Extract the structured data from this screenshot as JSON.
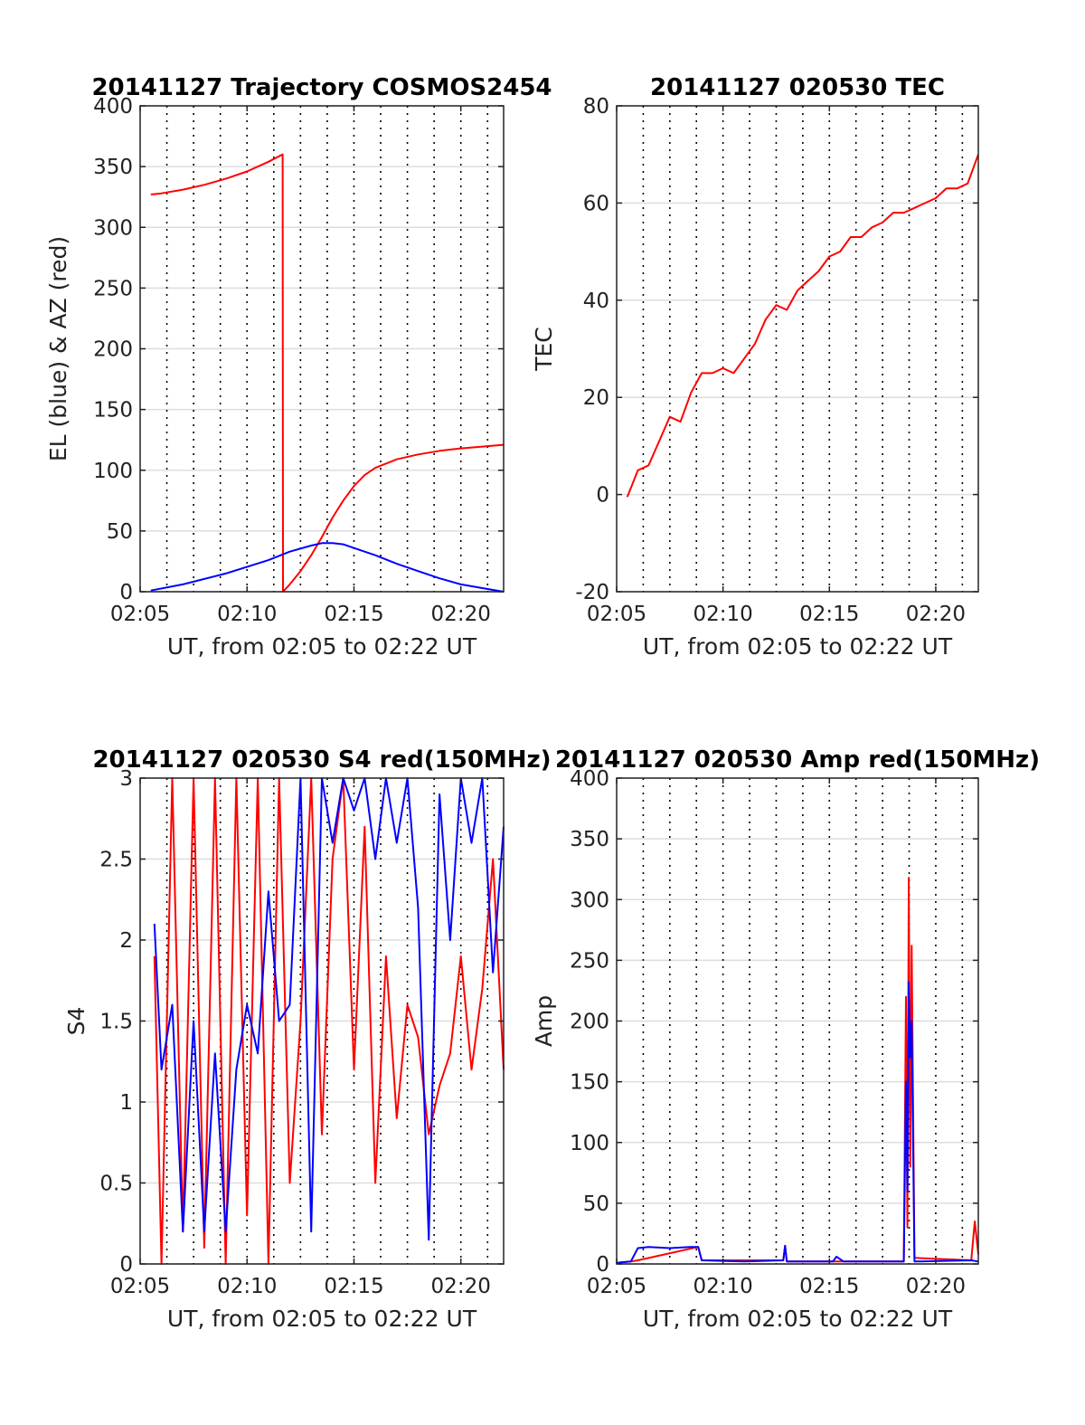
{
  "chart_data": [
    {
      "id": "p1",
      "type": "line",
      "title": "20141127 Trajectory COSMOS2454",
      "xlabel": "UT, from 02:05 to 02:22 UT",
      "ylabel": "EL (blue) & AZ (red)",
      "xlim": [
        "02:05",
        "02:22"
      ],
      "xticks": [
        "02:05",
        "02:10",
        "02:15",
        "02:20"
      ],
      "ylim": [
        0,
        400
      ],
      "yticks": [
        0,
        50,
        100,
        150,
        200,
        250,
        300,
        350,
        400
      ],
      "grid": "on",
      "colors": {
        "az": "#ff0000",
        "el": "#0000ff"
      },
      "series": [
        {
          "color": "red",
          "x": [
            "02:05:30",
            "02:06:00",
            "02:07:00",
            "02:08:00",
            "02:09:00",
            "02:10:00",
            "02:11:00",
            "02:11:40",
            "02:11:41",
            "02:12:00",
            "02:12:30",
            "02:13:00",
            "02:13:30",
            "02:14:00",
            "02:14:30",
            "02:15:00",
            "02:15:30",
            "02:16:00",
            "02:17:00",
            "02:18:00",
            "02:19:00",
            "02:20:00",
            "02:21:00",
            "02:22:00"
          ],
          "values": [
            327,
            328,
            331,
            335,
            340,
            346,
            354,
            360,
            0,
            6,
            17,
            30,
            45,
            61,
            75,
            87,
            96,
            102,
            109,
            113,
            116,
            118,
            119.5,
            121
          ]
        },
        {
          "color": "blue",
          "x": [
            "02:05:30",
            "02:07:00",
            "02:09:00",
            "02:11:00",
            "02:12:00",
            "02:13:00",
            "02:13:30",
            "02:14:00",
            "02:14:30",
            "02:15:00",
            "02:16:00",
            "02:17:00",
            "02:18:00",
            "02:19:00",
            "02:20:00",
            "02:21:00",
            "02:22:00"
          ],
          "values": [
            1,
            6,
            15,
            26,
            33,
            38,
            40,
            40,
            39,
            36,
            30,
            23,
            17,
            11,
            6,
            3,
            0
          ]
        }
      ]
    },
    {
      "id": "p2",
      "type": "line",
      "title": "20141127 020530 TEC",
      "xlabel": "UT, from 02:05 to 02:22 UT",
      "ylabel": "TEC",
      "xlim": [
        "02:05",
        "02:22"
      ],
      "xticks": [
        "02:05",
        "02:10",
        "02:15",
        "02:20"
      ],
      "ylim": [
        -20,
        80
      ],
      "yticks": [
        -20,
        0,
        20,
        40,
        60,
        80
      ],
      "grid": "on",
      "colors": {
        "tec": "#ff0000"
      },
      "series": [
        {
          "color": "red",
          "x": [
            "02:05:30",
            "02:06:00",
            "02:06:30",
            "02:07:00",
            "02:07:30",
            "02:08:00",
            "02:08:30",
            "02:09:00",
            "02:09:30",
            "02:10:00",
            "02:10:30",
            "02:11:00",
            "02:11:30",
            "02:12:00",
            "02:12:30",
            "02:13:00",
            "02:13:30",
            "02:14:00",
            "02:14:30",
            "02:15:00",
            "02:15:30",
            "02:16:00",
            "02:16:30",
            "02:17:00",
            "02:17:30",
            "02:18:00",
            "02:18:30",
            "02:19:00",
            "02:19:30",
            "02:20:00",
            "02:20:30",
            "02:21:00",
            "02:21:30",
            "02:22:00"
          ],
          "values": [
            -0.5,
            5,
            6,
            11,
            16,
            15,
            21,
            25,
            25,
            26,
            25,
            28,
            31,
            36,
            39,
            38,
            42,
            44,
            46,
            49,
            50,
            53,
            53,
            55,
            56,
            58,
            58,
            59,
            60,
            61,
            63,
            63,
            64,
            70
          ]
        }
      ]
    },
    {
      "id": "p3",
      "type": "line",
      "title": "20141127 020530 S4 red(150MHz)",
      "xlabel": "UT, from 02:05 to 02:22 UT",
      "ylabel": "S4",
      "xlim": [
        "02:05",
        "02:22"
      ],
      "xticks": [
        "02:05",
        "02:10",
        "02:15",
        "02:20"
      ],
      "ylim": [
        0,
        3
      ],
      "yticks": [
        0,
        0.5,
        1,
        1.5,
        2,
        2.5,
        3
      ],
      "grid": "on",
      "colors": {
        "red": "#ff0000",
        "blue": "#0000ff"
      },
      "series": [
        {
          "color": "red",
          "x": [
            "02:05:40",
            "02:06:00",
            "02:06:30",
            "02:07:00",
            "02:07:30",
            "02:08:00",
            "02:08:30",
            "02:09:00",
            "02:09:30",
            "02:10:00",
            "02:10:30",
            "02:11:00",
            "02:11:30",
            "02:12:00",
            "02:12:30",
            "02:13:00",
            "02:13:30",
            "02:14:00",
            "02:14:30",
            "02:15:00",
            "02:15:30",
            "02:16:00",
            "02:16:30",
            "02:17:00",
            "02:17:30",
            "02:18:00",
            "02:18:30",
            "02:19:00",
            "02:19:30",
            "02:20:00",
            "02:20:30",
            "02:21:00",
            "02:21:30",
            "02:22:00"
          ],
          "values": [
            1.9,
            0.0,
            3.0,
            0.2,
            3.0,
            0.1,
            3.0,
            0.0,
            3.0,
            0.3,
            3.0,
            0.0,
            3.0,
            0.5,
            1.5,
            3.0,
            0.8,
            2.5,
            3.0,
            1.2,
            2.7,
            0.5,
            1.9,
            0.9,
            1.6,
            1.4,
            0.8,
            1.1,
            1.3,
            1.9,
            1.2,
            1.7,
            2.5,
            1.2
          ]
        },
        {
          "color": "blue",
          "x": [
            "02:05:40",
            "02:06:00",
            "02:06:30",
            "02:07:00",
            "02:07:30",
            "02:08:00",
            "02:08:30",
            "02:09:00",
            "02:09:30",
            "02:10:00",
            "02:10:30",
            "02:11:00",
            "02:11:30",
            "02:12:00",
            "02:12:30",
            "02:13:00",
            "02:13:30",
            "02:14:00",
            "02:14:30",
            "02:15:00",
            "02:15:30",
            "02:16:00",
            "02:16:30",
            "02:17:00",
            "02:17:30",
            "02:18:00",
            "02:18:30",
            "02:19:00",
            "02:19:30",
            "02:20:00",
            "02:20:30",
            "02:21:00",
            "02:21:30",
            "02:22:00"
          ],
          "values": [
            2.1,
            1.2,
            1.6,
            0.2,
            1.5,
            0.2,
            1.3,
            0.2,
            1.2,
            1.6,
            1.3,
            2.3,
            1.5,
            1.6,
            3.0,
            0.2,
            3.0,
            2.6,
            3.0,
            2.8,
            3.0,
            2.5,
            3.0,
            2.6,
            3.0,
            2.2,
            0.15,
            2.9,
            2.0,
            3.0,
            2.6,
            3.0,
            1.8,
            2.7
          ]
        }
      ]
    },
    {
      "id": "p4",
      "type": "line",
      "title": "20141127 020530 Amp red(150MHz)",
      "xlabel": "UT, from 02:05 to 02:22 UT",
      "ylabel": "Amp",
      "xlim": [
        "02:05",
        "02:22"
      ],
      "xticks": [
        "02:05",
        "02:10",
        "02:15",
        "02:20"
      ],
      "ylim": [
        0,
        400
      ],
      "yticks": [
        0,
        50,
        100,
        150,
        200,
        250,
        300,
        350,
        400
      ],
      "grid": "on",
      "colors": {
        "red": "#ff0000",
        "blue": "#0000ff"
      },
      "series": [
        {
          "color": "red",
          "x": [
            "02:05:00",
            "02:05:40",
            "02:06:00",
            "02:08:50",
            "02:09:00",
            "02:12:50",
            "02:12:55",
            "02:13:00",
            "02:18:30",
            "02:18:36",
            "02:18:40",
            "02:18:44",
            "02:18:48",
            "02:18:52",
            "02:19:00",
            "02:21:40",
            "02:21:50",
            "02:22:00"
          ],
          "values": [
            1,
            2,
            3,
            14,
            3,
            3,
            15,
            2,
            2,
            220,
            30,
            318,
            80,
            262,
            5,
            3,
            35,
            8
          ]
        },
        {
          "color": "blue",
          "x": [
            "02:05:00",
            "02:05:40",
            "02:06:00",
            "02:06:30",
            "02:07:30",
            "02:08:30",
            "02:08:50",
            "02:09:00",
            "02:11:00",
            "02:12:50",
            "02:12:55",
            "02:13:00",
            "02:15:10",
            "02:15:20",
            "02:15:40",
            "02:18:30",
            "02:18:36",
            "02:18:40",
            "02:18:44",
            "02:18:48",
            "02:18:52",
            "02:19:00",
            "02:21:40",
            "02:22:00"
          ],
          "values": [
            1,
            2,
            13,
            14,
            13,
            14,
            14,
            3,
            2,
            3,
            15,
            2,
            2,
            6,
            2,
            2,
            150,
            60,
            232,
            170,
            200,
            2,
            3,
            2
          ]
        }
      ]
    }
  ]
}
